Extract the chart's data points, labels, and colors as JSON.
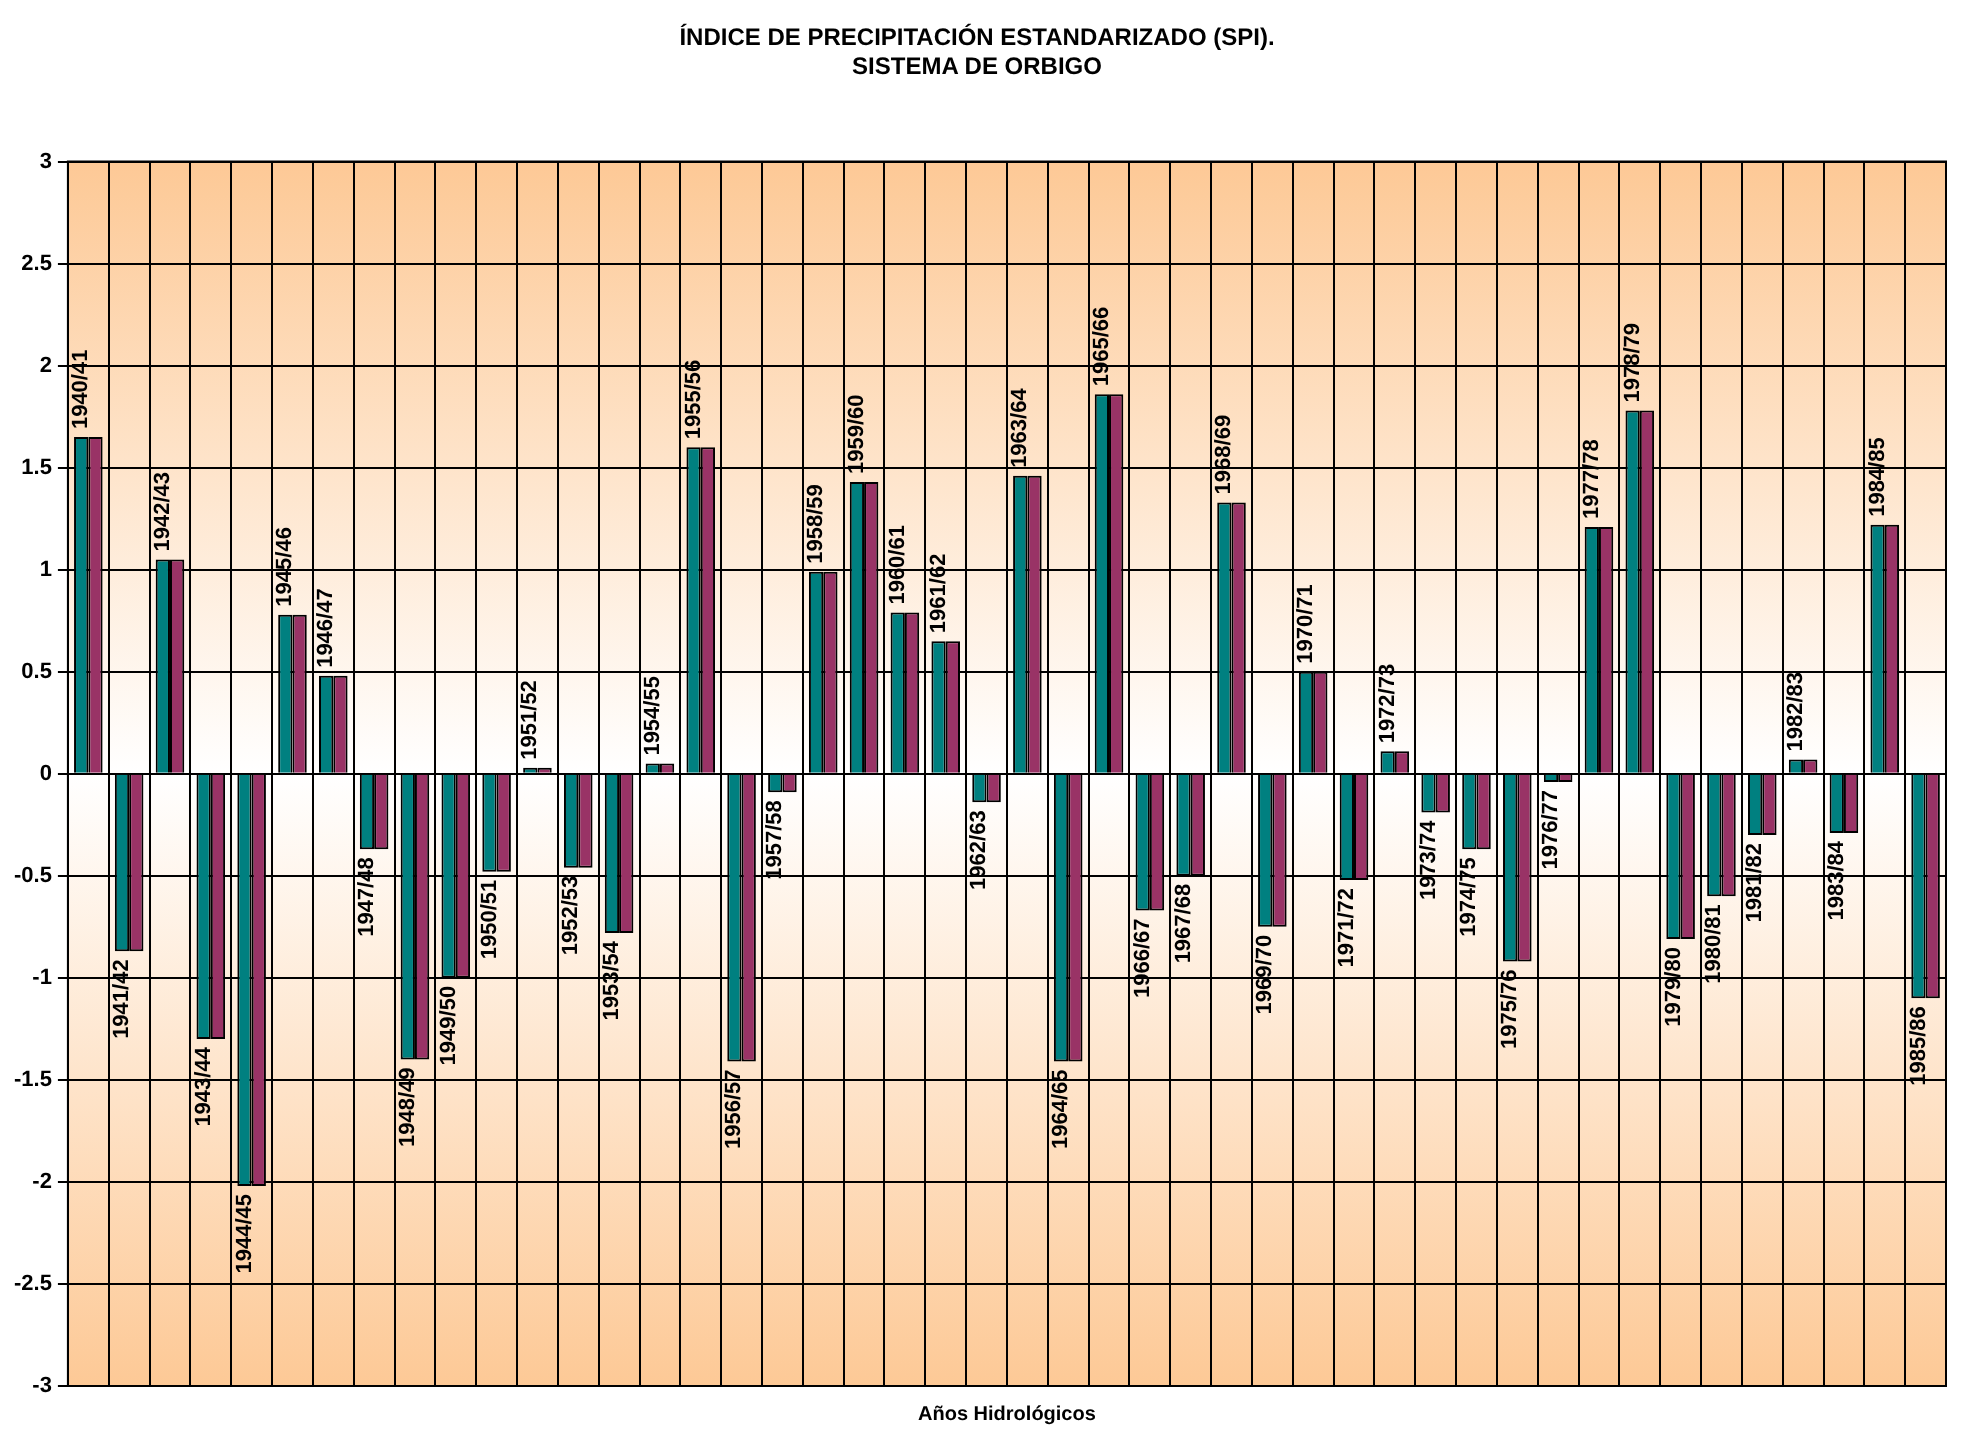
{
  "chart_data": {
    "type": "bar",
    "title": [
      "ÍNDICE DE PRECIPITACIÓN ESTANDARIZADO (SPI).",
      "SISTEMA DE ORBIGO"
    ],
    "xlabel": "Años Hidrológicos",
    "categories": [
      "1940/41",
      "1941/42",
      "1942/43",
      "1943/44",
      "1944/45",
      "1945/46",
      "1946/47",
      "1947/48",
      "1948/49",
      "1949/50",
      "1950/51",
      "1951/52",
      "1952/53",
      "1953/54",
      "1954/55",
      "1955/56",
      "1956/57",
      "1957/58",
      "1958/59",
      "1959/60",
      "1960/61",
      "1961/62",
      "1962/63",
      "1963/64",
      "1964/65",
      "1965/66",
      "1966/67",
      "1967/68",
      "1968/69",
      "1969/70",
      "1970/71",
      "1971/72",
      "1972/73",
      "1973/74",
      "1974/75",
      "1975/76",
      "1976/77",
      "1977/78",
      "1978/79",
      "1979/80",
      "1980/81",
      "1981/82",
      "1982/83",
      "1983/84",
      "1984/85",
      "1985/86"
    ],
    "series": [
      {
        "color": "#008080",
        "values": [
          1.65,
          -0.87,
          1.05,
          -1.3,
          -2.02,
          0.78,
          0.48,
          -0.37,
          -1.4,
          -1.0,
          -0.48,
          0.03,
          -0.46,
          -0.78,
          0.05,
          1.6,
          -1.41,
          -0.09,
          0.99,
          1.43,
          0.79,
          0.65,
          -0.14,
          1.46,
          -1.41,
          1.86,
          -0.67,
          -0.5,
          1.33,
          -0.75,
          0.5,
          -0.52,
          0.11,
          -0.19,
          -0.37,
          -0.92,
          -0.04,
          1.21,
          1.78,
          -0.81,
          -0.6,
          -0.3,
          0.07,
          -0.29,
          1.22,
          -1.1
        ]
      },
      {
        "color": "#993366",
        "values": [
          1.65,
          -0.87,
          1.05,
          -1.3,
          -2.02,
          0.78,
          0.48,
          -0.37,
          -1.4,
          -1.0,
          -0.48,
          0.03,
          -0.46,
          -0.78,
          0.05,
          1.6,
          -1.41,
          -0.09,
          0.99,
          1.43,
          0.79,
          0.65,
          -0.14,
          1.46,
          -1.41,
          1.86,
          -0.67,
          -0.5,
          1.33,
          -0.75,
          0.5,
          -0.52,
          0.11,
          -0.19,
          -0.37,
          -0.92,
          -0.04,
          1.21,
          1.78,
          -0.81,
          -0.6,
          -0.3,
          0.07,
          -0.29,
          1.22,
          -1.1
        ]
      }
    ],
    "ylim": [
      -3,
      3
    ],
    "yticks": [
      -3,
      -2.5,
      -2,
      -1.5,
      -1,
      -0.5,
      0,
      0.5,
      1,
      1.5,
      2,
      2.5,
      3
    ],
    "grid": true,
    "legend": false,
    "tick_labels": "y"
  }
}
